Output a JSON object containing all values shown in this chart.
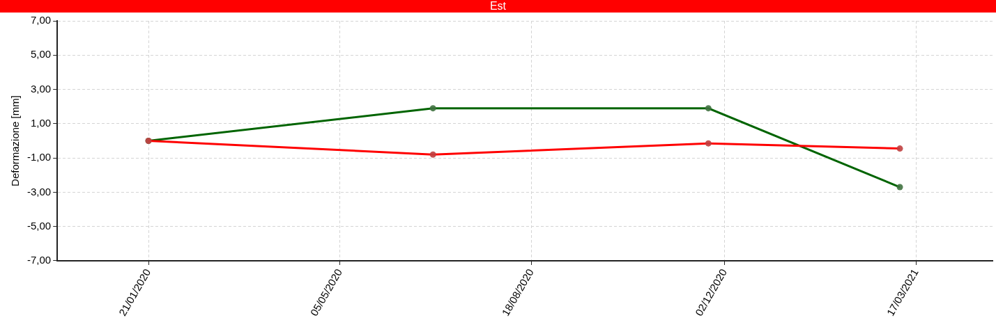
{
  "chart_data": {
    "type": "line",
    "title": "Est",
    "ylabel": "Deformazione [mm]",
    "xlim": [
      "2019-12-02",
      "2021-04-28"
    ],
    "xticks": [
      {
        "value": "2020-01-21",
        "label": "21/01/2020"
      },
      {
        "value": "2020-05-05",
        "label": "05/05/2020"
      },
      {
        "value": "2020-08-18",
        "label": "18/08/2020"
      },
      {
        "value": "2020-12-02",
        "label": "02/12/2020"
      },
      {
        "value": "2021-03-17",
        "label": "17/03/2021"
      }
    ],
    "ylim": [
      -7,
      7
    ],
    "yticks": [
      {
        "value": -7,
        "label": "-7,00"
      },
      {
        "value": -5,
        "label": "-5,00"
      },
      {
        "value": -3,
        "label": "-3,00"
      },
      {
        "value": -1,
        "label": "-1,00"
      },
      {
        "value": 1,
        "label": "1,00"
      },
      {
        "value": 3,
        "label": "3,00"
      },
      {
        "value": 5,
        "label": "5,00"
      },
      {
        "value": 7,
        "label": "7,00"
      }
    ],
    "x": [
      "2020-01-21",
      "2020-06-25",
      "2020-11-23",
      "2021-03-08"
    ],
    "series": [
      {
        "color": "#ff0000",
        "values": [
          0,
          -0.8,
          -0.15,
          -0.45
        ]
      },
      {
        "color": "#006400",
        "values": [
          0,
          1.9,
          1.9,
          -2.7
        ]
      }
    ],
    "grid": true,
    "legend": false,
    "marker": "circle",
    "line_style": "solid"
  }
}
